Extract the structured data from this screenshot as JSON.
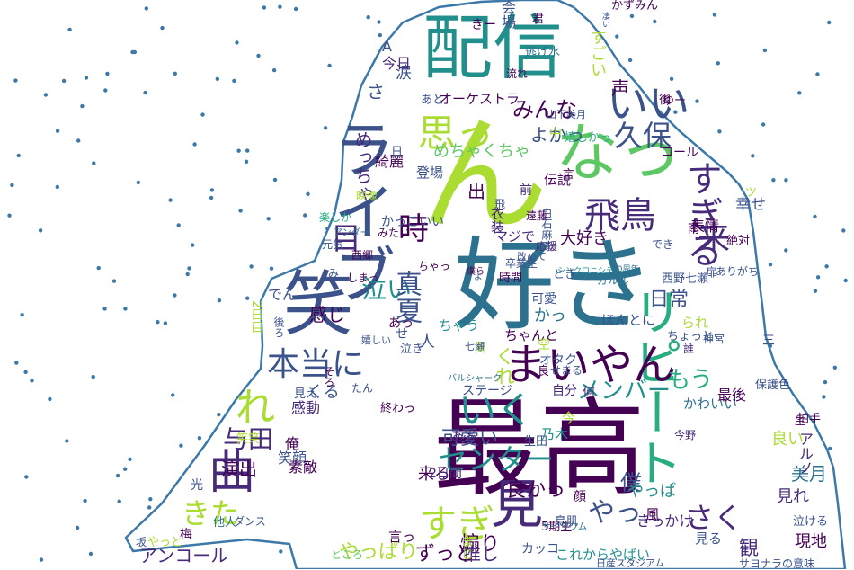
{
  "background": "#ffffff",
  "outline_color": "#3c78a8",
  "palette": [
    "#440154",
    "#472a7a",
    "#3b528b",
    "#2c728e",
    "#21908d",
    "#27ad81",
    "#5dc863",
    "#aadc32",
    "#fde725"
  ],
  "words": [
    {
      "text": "最高",
      "color": "#440154"
    },
    {
      "text": "好き",
      "color": "#2c728e"
    },
    {
      "text": "配信",
      "color": "#21908d"
    },
    {
      "text": "ん",
      "color": "#aadc32"
    },
    {
      "text": "ライブ",
      "color": "#3b528b"
    },
    {
      "text": "なっ",
      "color": "#5dc863"
    },
    {
      "text": "笑",
      "color": "#3b528b"
    },
    {
      "text": "見",
      "color": "#472a7a"
    },
    {
      "text": "リピート",
      "color": "#27ad81"
    },
    {
      "text": "曲",
      "color": "#472a7a"
    },
    {
      "text": "まいやん",
      "color": "#440154"
    },
    {
      "text": "すぎる",
      "color": "#472a7a"
    },
    {
      "text": "いく",
      "color": "#21908d"
    },
    {
      "text": "すぎ",
      "color": "#aadc32"
    },
    {
      "text": "いい",
      "color": "#3b528b"
    },
    {
      "text": "思っ",
      "color": "#aadc32"
    },
    {
      "text": "飛鳥",
      "color": "#472a7a"
    },
    {
      "text": "本当に",
      "color": "#3b528b"
    },
    {
      "text": "来",
      "color": "#472a7a"
    },
    {
      "text": "れ",
      "color": "#aadc32"
    },
    {
      "text": "センター",
      "color": "#21908d"
    },
    {
      "text": "時",
      "color": "#440154"
    },
    {
      "text": "さく",
      "color": "#472a7a"
    },
    {
      "text": "やっ",
      "color": "#3b528b"
    },
    {
      "text": "久保",
      "color": "#3b528b"
    },
    {
      "text": "与田",
      "color": "#472a7a"
    },
    {
      "text": "きた",
      "color": "#aadc32"
    },
    {
      "text": "泣い",
      "color": "#21908d"
    },
    {
      "text": "真夏",
      "color": "#3b528b"
    },
    {
      "text": "目",
      "color": "#472a7a"
    },
    {
      "text": "もう",
      "color": "#27ad81"
    },
    {
      "text": "メンバー",
      "color": "#21908d"
    },
    {
      "text": "みんな",
      "color": "#440154"
    },
    {
      "text": "アンコール",
      "color": "#472a7a"
    },
    {
      "text": "やっぱり",
      "color": "#aadc32"
    },
    {
      "text": "ずっと",
      "color": "#440154"
    },
    {
      "text": "煽り",
      "color": "#440154"
    },
    {
      "text": "良かっ",
      "color": "#440154"
    },
    {
      "text": "僕",
      "color": "#3b528b"
    },
    {
      "text": "可愛い",
      "color": "#3b528b"
    },
    {
      "text": "観",
      "color": "#472a7a"
    },
    {
      "text": "演出",
      "color": "#440154"
    },
    {
      "text": "めっちゃ",
      "color": "#472a7a"
    },
    {
      "text": "日常",
      "color": "#3b528b"
    },
    {
      "text": "大好き",
      "color": "#440154"
    },
    {
      "text": "さ",
      "color": "#3b528b"
    },
    {
      "text": "感じ",
      "color": "#440154"
    },
    {
      "text": "くる",
      "color": "#3b528b"
    },
    {
      "text": "出",
      "color": "#440154"
    },
    {
      "text": "くれ",
      "color": "#aadc32"
    },
    {
      "text": "かっ",
      "color": "#2c728e"
    },
    {
      "text": "人",
      "color": "#3b528b"
    },
    {
      "text": "美月",
      "color": "#2c728e"
    },
    {
      "text": "やっぱ",
      "color": "#21908d"
    },
    {
      "text": "来る",
      "color": "#440154"
    },
    {
      "text": "見れ",
      "color": "#472a7a"
    },
    {
      "text": "現地",
      "color": "#440154"
    },
    {
      "text": "推し",
      "color": "#472a7a"
    },
    {
      "text": "これからやばい",
      "color": "#21908d"
    },
    {
      "text": "めちゃくちゃ",
      "color": "#5dc863"
    },
    {
      "text": "よかっ",
      "color": "#3b528b"
    },
    {
      "text": "オーケストラ",
      "color": "#440154"
    },
    {
      "text": "涙",
      "color": "#3b528b"
    },
    {
      "text": "声",
      "color": "#440154"
    },
    {
      "text": "綺麗",
      "color": "#440154"
    },
    {
      "text": "登場",
      "color": "#3b528b"
    },
    {
      "text": "前",
      "color": "#472a7a"
    },
    {
      "text": "マジで",
      "color": "#472a7a"
    },
    {
      "text": "でん",
      "color": "#3b528b"
    },
    {
      "text": "2日目",
      "color": "#aadc32"
    },
    {
      "text": "感動",
      "color": "#472a7a"
    },
    {
      "text": "笑顔",
      "color": "#3b528b"
    },
    {
      "text": "ステージ",
      "color": "#3b528b"
    },
    {
      "text": "自分",
      "color": "#472a7a"
    },
    {
      "text": "何",
      "color": "#472a7a"
    },
    {
      "text": "かわいい",
      "color": "#2c728e"
    },
    {
      "text": "最後",
      "color": "#440154"
    },
    {
      "text": "今",
      "color": "#aadc32"
    },
    {
      "text": "生田",
      "color": "#3b528b"
    },
    {
      "text": "乃木",
      "color": "#21908d"
    },
    {
      "text": "良い",
      "color": "#aadc32"
    },
    {
      "text": "アルノ",
      "color": "#472a7a"
    },
    {
      "text": "今野",
      "color": "#472a7a"
    },
    {
      "text": "2日間",
      "color": "#472a7a"
    },
    {
      "text": "言っ",
      "color": "#440154"
    },
    {
      "text": "まじ",
      "color": "#aadc32"
    },
    {
      "text": "5期生",
      "color": "#440154"
    },
    {
      "text": "顔",
      "color": "#440154"
    },
    {
      "text": "カッコ",
      "color": "#3b528b"
    },
    {
      "text": "見る",
      "color": "#3b528b"
    },
    {
      "text": "風",
      "color": "#440154"
    },
    {
      "text": "サヨナラの意味",
      "color": "#3b528b"
    },
    {
      "text": "日産スタジアム",
      "color": "#3b528b"
    },
    {
      "text": "ところ",
      "color": "#5dc863"
    },
    {
      "text": "梅",
      "color": "#440154"
    },
    {
      "text": "光",
      "color": "#3b528b"
    },
    {
      "text": "俺",
      "color": "#440154"
    },
    {
      "text": "素敵",
      "color": "#440154"
    },
    {
      "text": "ダンス",
      "color": "#3b528b"
    },
    {
      "text": "他人",
      "color": "#2c728e"
    },
    {
      "text": "鳥肌",
      "color": "#3b528b"
    },
    {
      "text": "サイリウム",
      "color": "#2c728e"
    },
    {
      "text": "可愛",
      "color": "#3b528b"
    },
    {
      "text": "卒業生",
      "color": "#3b528b"
    },
    {
      "text": "時間",
      "color": "#440154"
    },
    {
      "text": "ちゃう",
      "color": "#21908d"
    },
    {
      "text": "ほんとに",
      "color": "#3b528b"
    },
    {
      "text": "られ",
      "color": "#aadc32"
    },
    {
      "text": "ちゃんと",
      "color": "#440154"
    },
    {
      "text": "あっ",
      "color": "#440154"
    },
    {
      "text": "せ",
      "color": "#3b528b"
    },
    {
      "text": "バルシャーク",
      "color": "#2c728e"
    },
    {
      "text": "西野七瀬",
      "color": "#3b528b"
    },
    {
      "text": "シンクロニシティ",
      "color": "#21908d"
    },
    {
      "text": "10周年",
      "color": "#2c728e"
    },
    {
      "text": "扉",
      "color": "#3b528b"
    },
    {
      "text": "応援",
      "color": "#472a7a"
    },
    {
      "text": "改めて",
      "color": "#3b528b"
    },
    {
      "text": "でき",
      "color": "#3b528b"
    },
    {
      "text": "幸せ",
      "color": "#3b528b"
    },
    {
      "text": "表情",
      "color": "#440154"
    },
    {
      "text": "伝説",
      "color": "#440154"
    },
    {
      "text": "衣装",
      "color": "#472a7a"
    },
    {
      "text": "白石麻衣",
      "color": "#3b528b"
    },
    {
      "text": "コール",
      "color": "#440154"
    },
    {
      "text": "嬉しかっ",
      "color": "#27ad81"
    },
    {
      "text": "会場",
      "color": "#3b528b"
    },
    {
      "text": "かずみん",
      "color": "#440154"
    },
    {
      "text": "きー",
      "color": "#440154"
    },
    {
      "text": "すごい",
      "color": "#aadc32"
    },
    {
      "text": "A",
      "color": "#3b528b"
    },
    {
      "text": "今日",
      "color": "#472a7a"
    },
    {
      "text": "山下美月",
      "color": "#3b528b"
    },
    {
      "text": "かっこいい",
      "color": "#3b528b"
    },
    {
      "text": "みたい",
      "color": "#440154"
    },
    {
      "text": "映像",
      "color": "#aadc32"
    },
    {
      "text": "アンダー",
      "color": "#2c728e"
    },
    {
      "text": "日",
      "color": "#3b528b"
    },
    {
      "text": "絶対",
      "color": "#440154"
    },
    {
      "text": "雨",
      "color": "#440154"
    },
    {
      "text": "中",
      "color": "#aadc32"
    },
    {
      "text": "言",
      "color": "#440154"
    },
    {
      "text": "ガルル",
      "color": "#2c728e"
    },
    {
      "text": "神宮",
      "color": "#3b528b"
    },
    {
      "text": "保護色",
      "color": "#3b528b"
    },
    {
      "text": "拍手",
      "color": "#440154"
    },
    {
      "text": "泣ける",
      "color": "#3b528b"
    },
    {
      "text": "誰",
      "color": "#472a7a"
    },
    {
      "text": "よ",
      "color": "#3b528b"
    },
    {
      "text": "しまっ",
      "color": "#440154"
    },
    {
      "text": "後ろ",
      "color": "#3b528b"
    },
    {
      "text": "見え",
      "color": "#3b528b"
    },
    {
      "text": "たん",
      "color": "#3b528b"
    },
    {
      "text": "笑笑",
      "color": "#aadc32"
    },
    {
      "text": "ちょっと",
      "color": "#3b528b"
    },
    {
      "text": "三",
      "color": "#3b528b"
    },
    {
      "text": "終わっ",
      "color": "#440154"
    },
    {
      "text": "あぁ",
      "color": "#472a7a"
    },
    {
      "text": "坂",
      "color": "#3b528b"
    },
    {
      "text": "やっと",
      "color": "#aadc32"
    },
    {
      "text": "きっかけ",
      "color": "#472a7a"
    },
    {
      "text": "ありがち",
      "color": "#3b528b"
    },
    {
      "text": "ツ",
      "color": "#aadc32"
    },
    {
      "text": "凄い",
      "color": "#3b528b"
    },
    {
      "text": "流れ",
      "color": "#440154"
    },
    {
      "text": "逃げ水",
      "color": "#2c728e"
    },
    {
      "text": "後",
      "color": "#440154"
    },
    {
      "text": "ゆー",
      "color": "#440154"
    },
    {
      "text": "僕ら",
      "color": "#440154"
    },
    {
      "text": "空",
      "color": "#aadc32"
    },
    {
      "text": "オタク",
      "color": "#3b528b"
    },
    {
      "text": "良",
      "color": "#440154"
    },
    {
      "text": "夏",
      "color": "#aadc32"
    },
    {
      "text": "泣き",
      "color": "#3b528b"
    },
    {
      "text": "七瀬",
      "color": "#3b528b"
    },
    {
      "text": "あと",
      "color": "#3b528b"
    },
    {
      "text": "そろ",
      "color": "#440154"
    },
    {
      "text": "とき",
      "color": "#3b528b"
    },
    {
      "text": "せまる",
      "color": "#3b528b"
    },
    {
      "text": "嬉しい",
      "color": "#3b528b"
    },
    {
      "text": "遠藤",
      "color": "#440154"
    },
    {
      "text": "ちゃっ",
      "color": "#440154"
    },
    {
      "text": "生",
      "color": "#440154"
    },
    {
      "text": "楽しか",
      "color": "#27ad81"
    },
    {
      "text": "君",
      "color": "#440154"
    },
    {
      "text": "み",
      "color": "#3b528b"
    },
    {
      "text": "西郷",
      "color": "#440154"
    },
    {
      "text": "元気",
      "color": "#3b528b"
    },
    {
      "text": "飛",
      "color": "#3b528b"
    }
  ]
}
